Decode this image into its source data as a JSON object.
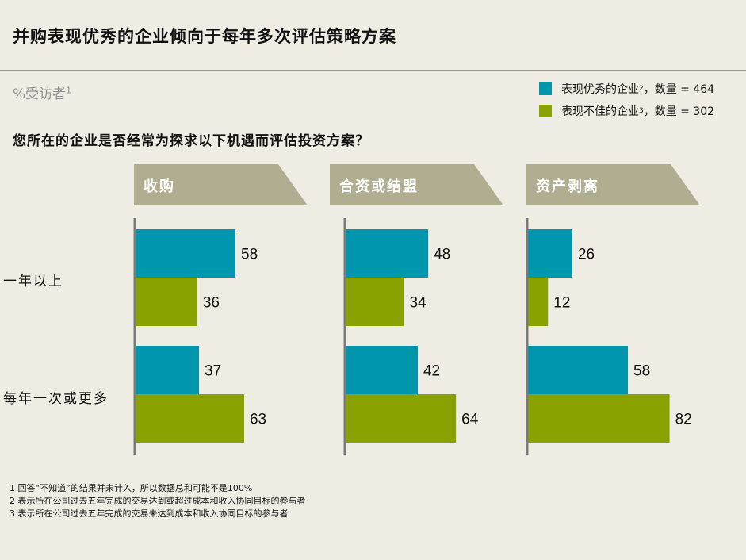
{
  "title": "并购表现优秀的企业倾向于每年多次评估策略方案",
  "unit": {
    "text": "%受访者",
    "note": "1"
  },
  "legend": [
    {
      "label": "表现优秀的企业",
      "note": "2",
      "suffix": "，数量 = 464",
      "color": "#0097ae"
    },
    {
      "label": "表现不佳的企业",
      "note": "3",
      "suffix": "，数量 = 302",
      "color": "#8aa200"
    }
  ],
  "question": "您所在的企业是否经常为探求以下机遇而评估投资方案？",
  "colors": {
    "header": "#b0ad90",
    "axis": "#7a7a7a"
  },
  "chart_data": {
    "type": "bar",
    "orientation": "horizontal",
    "categories": [
      "一年以上",
      "每年一次或更多"
    ],
    "panels": [
      {
        "title": "收购",
        "series": [
          {
            "name": "表现优秀的企业",
            "values": [
              58,
              37
            ]
          },
          {
            "name": "表现不佳的企业",
            "values": [
              36,
              63
            ]
          }
        ]
      },
      {
        "title": "合资或结盟",
        "series": [
          {
            "name": "表现优秀的企业",
            "values": [
              48,
              42
            ]
          },
          {
            "name": "表现不佳的企业",
            "values": [
              34,
              64
            ]
          }
        ]
      },
      {
        "title": "资产剥离",
        "series": [
          {
            "name": "表现优秀的企业",
            "values": [
              26,
              58
            ]
          },
          {
            "name": "表现不佳的企业",
            "values": [
              12,
              82
            ]
          }
        ]
      }
    ]
  },
  "footnotes": [
    "1 回答“不知道”的结果并未计入，所以数据总和可能不是100%",
    "2 表示所在公司过去五年完成的交易达到或超过成本和收入协同目标的参与者",
    "3 表示所在公司过去五年完成的交易未达到成本和收入协同目标的参与者"
  ]
}
